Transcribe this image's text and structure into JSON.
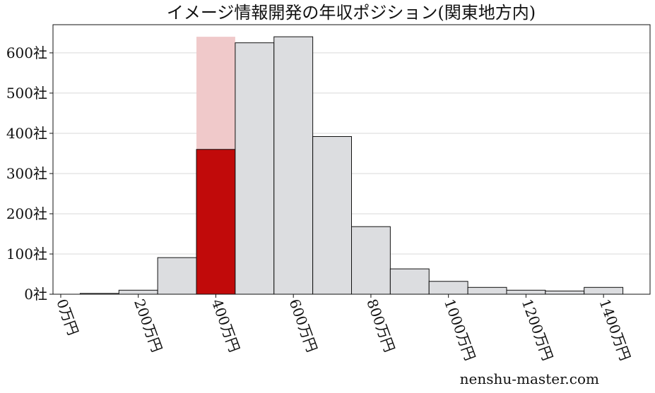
{
  "chart_data": {
    "type": "bar",
    "title": "イメージ情報開発の年収ポジション(関東地方内)",
    "xlabel": "",
    "ylabel": "",
    "x_unit": "万円",
    "y_unit": "社",
    "xlim": [
      -20,
      1520
    ],
    "ylim": [
      0,
      670
    ],
    "xticks": [
      {
        "value": 0,
        "label": "0万円"
      },
      {
        "value": 200,
        "label": "200万円"
      },
      {
        "value": 400,
        "label": "400万円"
      },
      {
        "value": 600,
        "label": "600万円"
      },
      {
        "value": 800,
        "label": "800万円"
      },
      {
        "value": 1000,
        "label": "1000万円"
      },
      {
        "value": 1200,
        "label": "1200万円"
      },
      {
        "value": 1400,
        "label": "1400万円"
      }
    ],
    "yticks": [
      {
        "value": 0,
        "label": "0社"
      },
      {
        "value": 100,
        "label": "100社"
      },
      {
        "value": 200,
        "label": "200社"
      },
      {
        "value": 300,
        "label": "300社"
      },
      {
        "value": 400,
        "label": "400社"
      },
      {
        "value": 500,
        "label": "500社"
      },
      {
        "value": 600,
        "label": "600社"
      }
    ],
    "bin_width": 100,
    "bins": [
      {
        "start": 50,
        "value": 2
      },
      {
        "start": 150,
        "value": 10
      },
      {
        "start": 250,
        "value": 91
      },
      {
        "start": 350,
        "value": 640
      },
      {
        "start": 450,
        "value": 625
      },
      {
        "start": 550,
        "value": 640
      },
      {
        "start": 650,
        "value": 392
      },
      {
        "start": 750,
        "value": 168
      },
      {
        "start": 850,
        "value": 63
      },
      {
        "start": 950,
        "value": 32
      },
      {
        "start": 1050,
        "value": 17
      },
      {
        "start": 1150,
        "value": 10
      },
      {
        "start": 1250,
        "value": 8
      },
      {
        "start": 1350,
        "value": 17
      }
    ],
    "highlight": {
      "start": 350,
      "value": 360
    },
    "grid": "y",
    "colors": {
      "bar": "#dcdde0",
      "bar_edge": "#111111",
      "highlight": "#c10a0a",
      "highlight_bin": "#f0c9ca",
      "grid": "#d9d9d9"
    }
  },
  "watermark": "nenshu-master.com"
}
